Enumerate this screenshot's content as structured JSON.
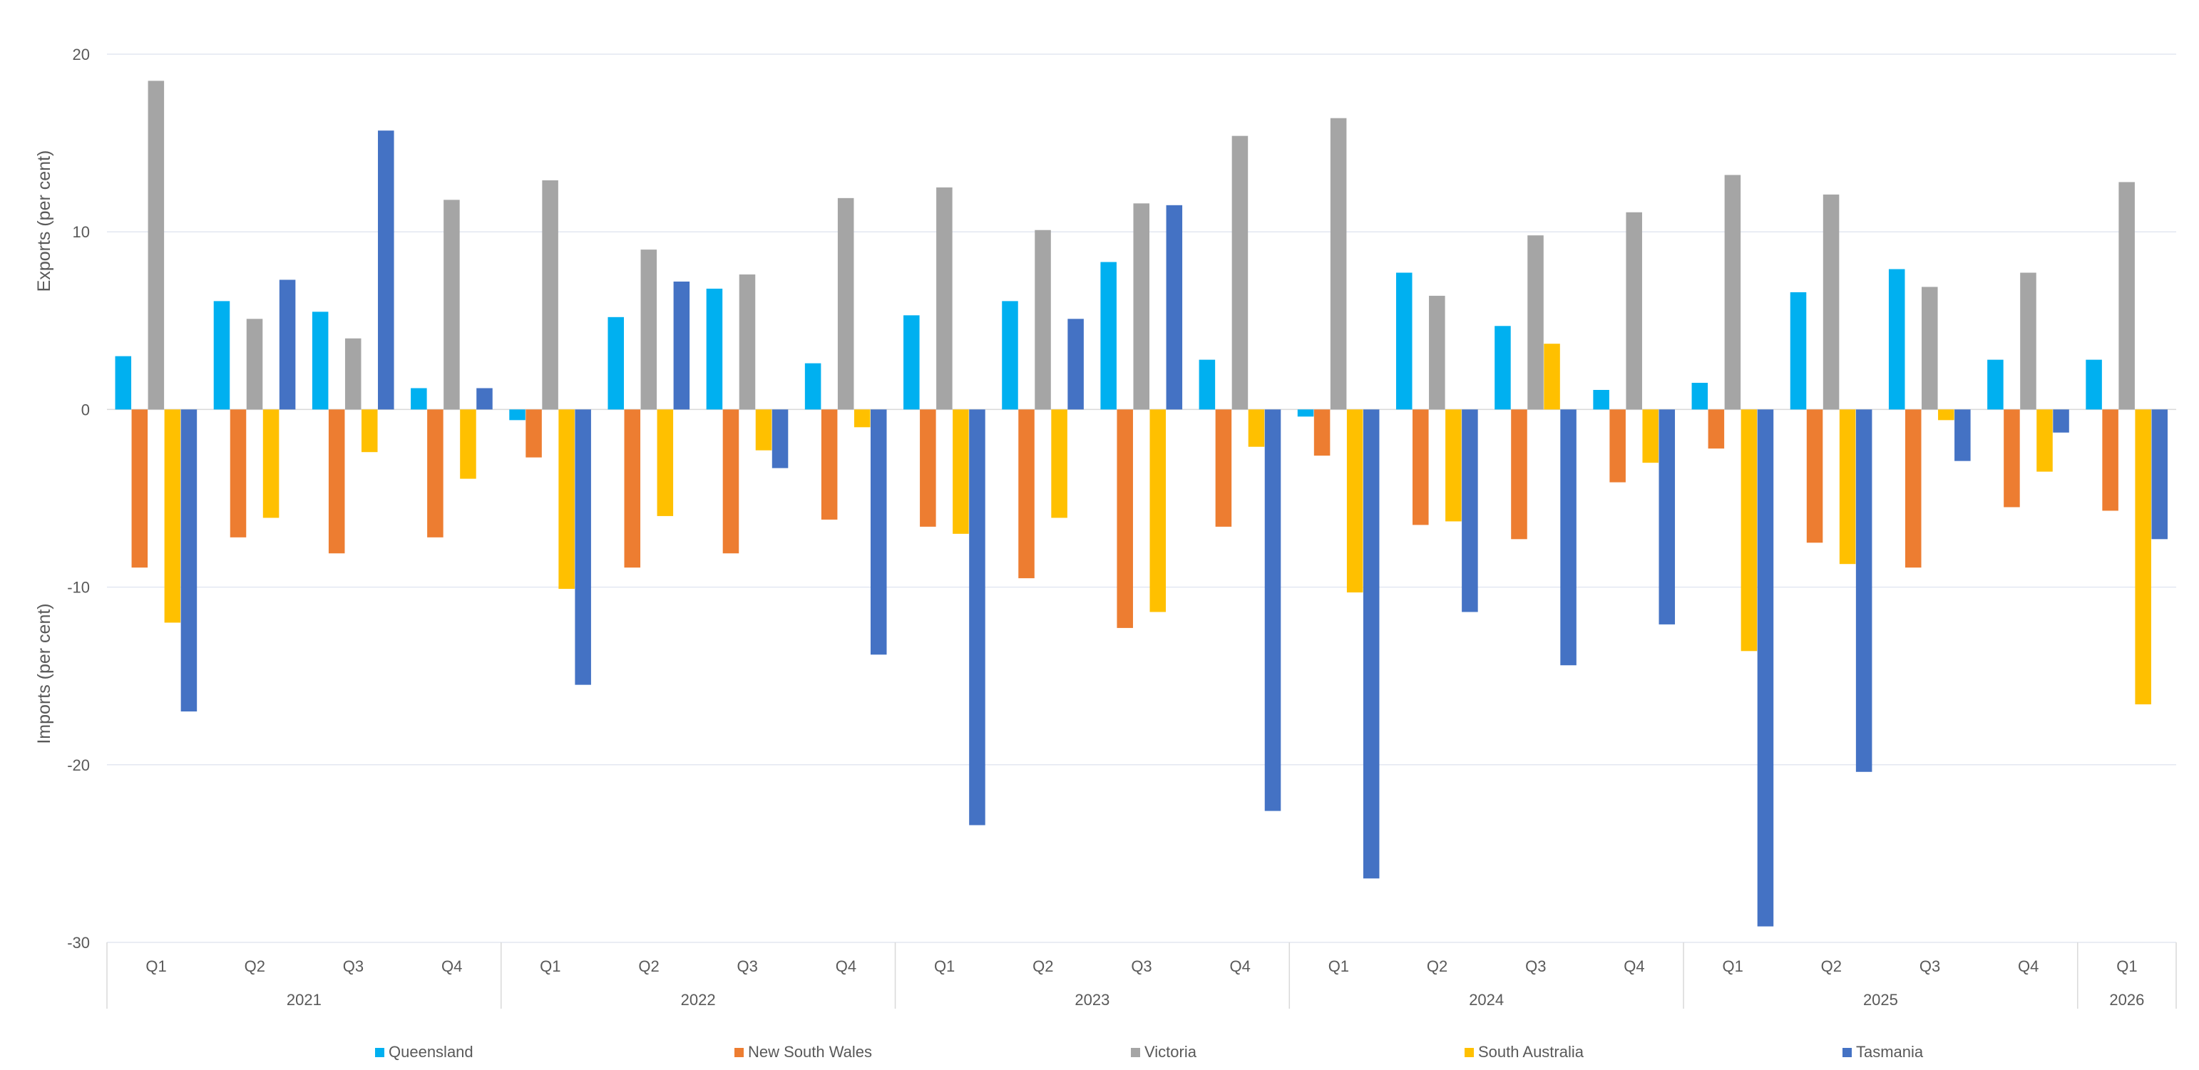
{
  "chart_data": {
    "type": "bar",
    "y_axis_labels": [
      "Exports (per cent)",
      "Imports (per cent)"
    ],
    "ylim": [
      -30,
      20
    ],
    "yticks": [
      20,
      10,
      0,
      -10,
      -20,
      -30
    ],
    "grid": true,
    "legend_position": "bottom",
    "categories": [
      {
        "quarter": "Q1",
        "year": "2021"
      },
      {
        "quarter": "Q2",
        "year": "2021"
      },
      {
        "quarter": "Q3",
        "year": "2021"
      },
      {
        "quarter": "Q4",
        "year": "2021"
      },
      {
        "quarter": "Q1",
        "year": "2022"
      },
      {
        "quarter": "Q2",
        "year": "2022"
      },
      {
        "quarter": "Q3",
        "year": "2022"
      },
      {
        "quarter": "Q4",
        "year": "2022"
      },
      {
        "quarter": "Q1",
        "year": "2023"
      },
      {
        "quarter": "Q2",
        "year": "2023"
      },
      {
        "quarter": "Q3",
        "year": "2023"
      },
      {
        "quarter": "Q4",
        "year": "2023"
      },
      {
        "quarter": "Q1",
        "year": "2024"
      },
      {
        "quarter": "Q2",
        "year": "2024"
      },
      {
        "quarter": "Q3",
        "year": "2024"
      },
      {
        "quarter": "Q4",
        "year": "2024"
      },
      {
        "quarter": "Q1",
        "year": "2025"
      },
      {
        "quarter": "Q2",
        "year": "2025"
      },
      {
        "quarter": "Q3",
        "year": "2025"
      },
      {
        "quarter": "Q4",
        "year": "2025"
      },
      {
        "quarter": "Q1",
        "year": "2026"
      }
    ],
    "years": [
      "2021",
      "2022",
      "2023",
      "2024",
      "2025",
      "2026"
    ],
    "series": [
      {
        "name": "Queensland",
        "color": "#00B0F0",
        "values": [
          3.0,
          6.1,
          5.5,
          1.2,
          -0.6,
          5.2,
          6.8,
          2.6,
          5.3,
          6.1,
          8.3,
          2.8,
          -0.4,
          7.7,
          4.7,
          1.1,
          1.5,
          6.6,
          7.9,
          2.8,
          2.8
        ]
      },
      {
        "name": "New South Wales",
        "color": "#ED7D31",
        "values": [
          -8.9,
          -7.2,
          -8.1,
          -7.2,
          -2.7,
          -8.9,
          -8.1,
          -6.2,
          -6.6,
          -9.5,
          -12.3,
          -6.6,
          -2.6,
          -6.5,
          -7.3,
          -4.1,
          -2.2,
          -7.5,
          -8.9,
          -5.5,
          -5.7
        ]
      },
      {
        "name": "Victoria",
        "color": "#A5A5A5",
        "values": [
          18.5,
          5.1,
          4.0,
          11.8,
          12.9,
          9.0,
          7.6,
          11.9,
          12.5,
          10.1,
          11.6,
          15.4,
          16.4,
          6.4,
          9.8,
          11.1,
          13.2,
          12.1,
          6.9,
          7.7,
          12.8
        ]
      },
      {
        "name": "South Australia",
        "color": "#FFC000",
        "values": [
          -12.0,
          -6.1,
          -2.4,
          -3.9,
          -10.1,
          -6.0,
          -2.3,
          -1.0,
          -7.0,
          -6.1,
          -11.4,
          -2.1,
          -10.3,
          -6.3,
          3.7,
          -3.0,
          -13.6,
          -8.7,
          -0.6,
          -3.5,
          -16.6
        ]
      },
      {
        "name": "Tasmania",
        "color": "#4472C4",
        "values": [
          -17.0,
          7.3,
          15.7,
          1.2,
          -15.5,
          7.2,
          -3.3,
          -13.8,
          -23.4,
          5.1,
          11.5,
          -22.6,
          -26.4,
          -11.4,
          -14.4,
          -12.1,
          -29.1,
          -20.4,
          -2.9,
          -1.3,
          -7.3
        ]
      }
    ]
  }
}
